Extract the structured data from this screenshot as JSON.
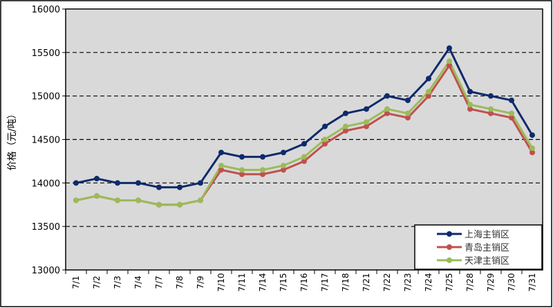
{
  "chart_data": {
    "type": "line",
    "title": "",
    "xlabel": "",
    "ylabel": "价格（元/吨）",
    "ylim": [
      13000,
      16000
    ],
    "yticks": [
      13000,
      13500,
      14000,
      14500,
      15000,
      15500,
      16000
    ],
    "grid": "horizontal dashed",
    "legend": "bottom-right",
    "categories": [
      "7/1",
      "7/2",
      "7/3",
      "7/4",
      "7/7",
      "7/8",
      "7/9",
      "7/10",
      "7/11",
      "7/14",
      "7/15",
      "7/16",
      "7/17",
      "7/18",
      "7/21",
      "7/22",
      "7/23",
      "7/24",
      "7/25",
      "7/28",
      "7/29",
      "7/30",
      "7/31"
    ],
    "series": [
      {
        "name": "上海主销区",
        "color": "#0d2a6b",
        "values": [
          14000,
          14050,
          14000,
          14000,
          13950,
          13950,
          14000,
          14350,
          14300,
          14300,
          14350,
          14450,
          14650,
          14800,
          14850,
          15000,
          14950,
          15200,
          15550,
          15050,
          15000,
          14950,
          14550
        ]
      },
      {
        "name": "青岛主销区",
        "color": "#c0504d",
        "values": [
          13800,
          13850,
          13800,
          13800,
          13750,
          13750,
          13800,
          14150,
          14100,
          14100,
          14150,
          14250,
          14450,
          14600,
          14650,
          14800,
          14750,
          15000,
          15350,
          14850,
          14800,
          14750,
          14350
        ]
      },
      {
        "name": "天津主销区",
        "color": "#9bbb59",
        "values": [
          13800,
          13850,
          13800,
          13800,
          13750,
          13750,
          13800,
          14200,
          14150,
          14150,
          14200,
          14300,
          14500,
          14650,
          14700,
          14850,
          14800,
          15050,
          15400,
          14900,
          14850,
          14800,
          14400
        ]
      }
    ]
  }
}
